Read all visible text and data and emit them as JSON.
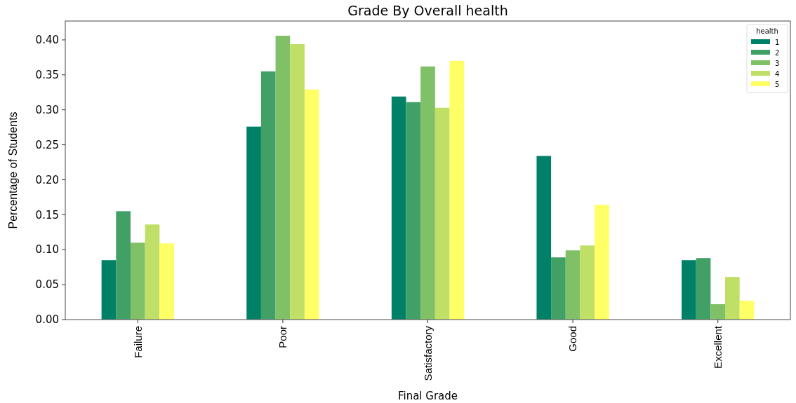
{
  "chart_data": {
    "type": "bar",
    "title": "Grade By Overall health",
    "xlabel": "Final Grade",
    "ylabel": "Percentage of Students",
    "legend_title": "health",
    "categories": [
      "Failure",
      "Poor",
      "Satisfactory",
      "Good",
      "Excellent"
    ],
    "series": [
      {
        "name": "1",
        "color": "#008066",
        "values": [
          0.085,
          0.276,
          0.319,
          0.234,
          0.085
        ]
      },
      {
        "name": "2",
        "color": "#40a066",
        "values": [
          0.155,
          0.355,
          0.311,
          0.089,
          0.088
        ]
      },
      {
        "name": "3",
        "color": "#80c066",
        "values": [
          0.11,
          0.406,
          0.362,
          0.099,
          0.022
        ]
      },
      {
        "name": "4",
        "color": "#bfdf66",
        "values": [
          0.136,
          0.394,
          0.303,
          0.106,
          0.061
        ]
      },
      {
        "name": "5",
        "color": "#ffff66",
        "values": [
          0.109,
          0.329,
          0.37,
          0.164,
          0.027
        ]
      }
    ],
    "ylim": [
      0,
      0.427
    ],
    "yticks": [
      {
        "value": 0,
        "label": "0.00"
      },
      {
        "value": 0.05,
        "label": "0.05"
      },
      {
        "value": 0.1,
        "label": "0.10"
      },
      {
        "value": 0.15,
        "label": "0.15"
      },
      {
        "value": 0.2,
        "label": "0.20"
      },
      {
        "value": 0.25,
        "label": "0.25"
      },
      {
        "value": 0.3,
        "label": "0.30"
      },
      {
        "value": 0.35,
        "label": "0.35"
      },
      {
        "value": 0.4,
        "label": "0.40"
      }
    ],
    "legend": "top right",
    "grid": false
  }
}
